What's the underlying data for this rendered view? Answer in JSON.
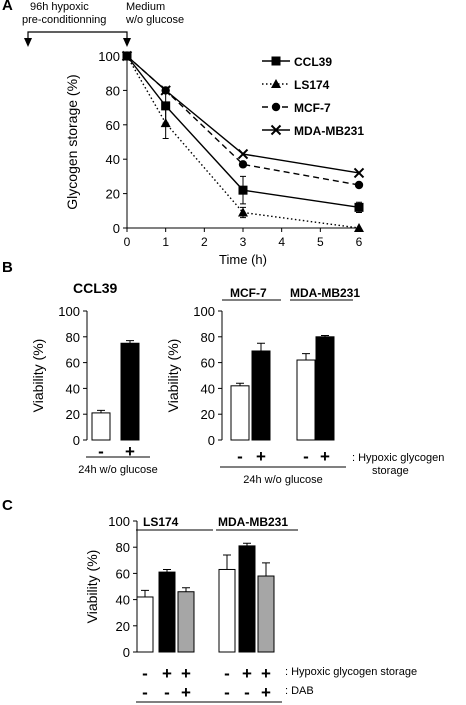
{
  "panel_labels": {
    "a": "A",
    "b": "B",
    "c": "C"
  },
  "panel_a_header": {
    "left_line1": "96h hypoxic",
    "left_line2": "pre-conditionning",
    "right_line1": "Medium",
    "right_line2": "w/o glucose"
  },
  "panel_b": {
    "left_title": "CCL39",
    "group1": "MCF-7",
    "group2": "MDA-MB231",
    "foot_left": "24h w/o glucose",
    "foot_right": "24h w/o glucose",
    "hypoxic_label_line1": ": Hypoxic glycogen",
    "hypoxic_label_line2": "storage"
  },
  "panel_c": {
    "group1": "LS174",
    "group2": "MDA-MB231",
    "row1_label": ": Hypoxic glycogen storage",
    "row2_label": ": DAB"
  },
  "chart_data": [
    {
      "type": "line",
      "panel": "A",
      "xlabel": "Time (h)",
      "ylabel": "Glycogen storage  (%)",
      "xlim": [
        0,
        6
      ],
      "ylim": [
        0,
        100
      ],
      "x_ticks": [
        "0",
        "1",
        "2",
        "3",
        "4",
        "5",
        "6"
      ],
      "y_ticks": [
        "0",
        "20",
        "40",
        "60",
        "80",
        "100"
      ],
      "legend_position": "top-right",
      "series": [
        {
          "name": "CCL39",
          "marker": "square",
          "line": "solid",
          "x": [
            0,
            1,
            3,
            6
          ],
          "y": [
            100,
            71,
            22,
            12
          ],
          "err": [
            0,
            10,
            8,
            3
          ]
        },
        {
          "name": "LS174",
          "marker": "triangle",
          "line": "dotted",
          "x": [
            0,
            1,
            3,
            6
          ],
          "y": [
            100,
            61,
            9,
            0
          ],
          "err": [
            0,
            9,
            3,
            0
          ]
        },
        {
          "name": "MCF-7",
          "marker": "circle",
          "line": "dashed",
          "x": [
            0,
            1,
            3,
            6
          ],
          "y": [
            100,
            80,
            37,
            25
          ],
          "err": [
            0,
            0,
            0,
            0
          ]
        },
        {
          "name": "MDA-MB231",
          "marker": "x",
          "line": "solid",
          "x": [
            0,
            1,
            3,
            6
          ],
          "y": [
            100,
            80,
            43,
            32
          ],
          "err": [
            0,
            0,
            0,
            0
          ]
        }
      ]
    },
    {
      "type": "bar",
      "panel": "B-left",
      "ylabel": "Viability  (%)",
      "ylim": [
        0,
        100
      ],
      "y_ticks": [
        "0",
        "20",
        "40",
        "60",
        "80",
        "100"
      ],
      "categories": [
        "-",
        "+"
      ],
      "values": [
        21,
        75
      ],
      "err": [
        2,
        2
      ],
      "bar_fill": [
        "#ffffff",
        "#000000"
      ]
    },
    {
      "type": "bar",
      "panel": "B-right",
      "ylabel": "Viability  (%)",
      "ylim": [
        0,
        100
      ],
      "y_ticks": [
        "0",
        "20",
        "40",
        "60",
        "80",
        "100"
      ],
      "categories": [
        "-",
        "+",
        "-",
        "+"
      ],
      "values": [
        42,
        69,
        62,
        80
      ],
      "err": [
        2,
        6,
        5,
        1
      ],
      "bar_fill": [
        "#ffffff",
        "#000000",
        "#ffffff",
        "#000000"
      ]
    },
    {
      "type": "bar",
      "panel": "C",
      "ylabel": "Viability  (%)",
      "ylim": [
        0,
        100
      ],
      "y_ticks": [
        "0",
        "20",
        "40",
        "60",
        "80",
        "100"
      ],
      "categories": [
        "-",
        "+",
        "+",
        "-",
        "+",
        "+"
      ],
      "row2": [
        "-",
        "-",
        "+",
        "-",
        "-",
        "+"
      ],
      "values": [
        42,
        61,
        46,
        63,
        81,
        58
      ],
      "err": [
        5,
        2,
        3,
        11,
        2,
        10
      ],
      "bar_fill": [
        "#ffffff",
        "#000000",
        "#a6a6a6",
        "#ffffff",
        "#000000",
        "#a6a6a6"
      ]
    }
  ]
}
